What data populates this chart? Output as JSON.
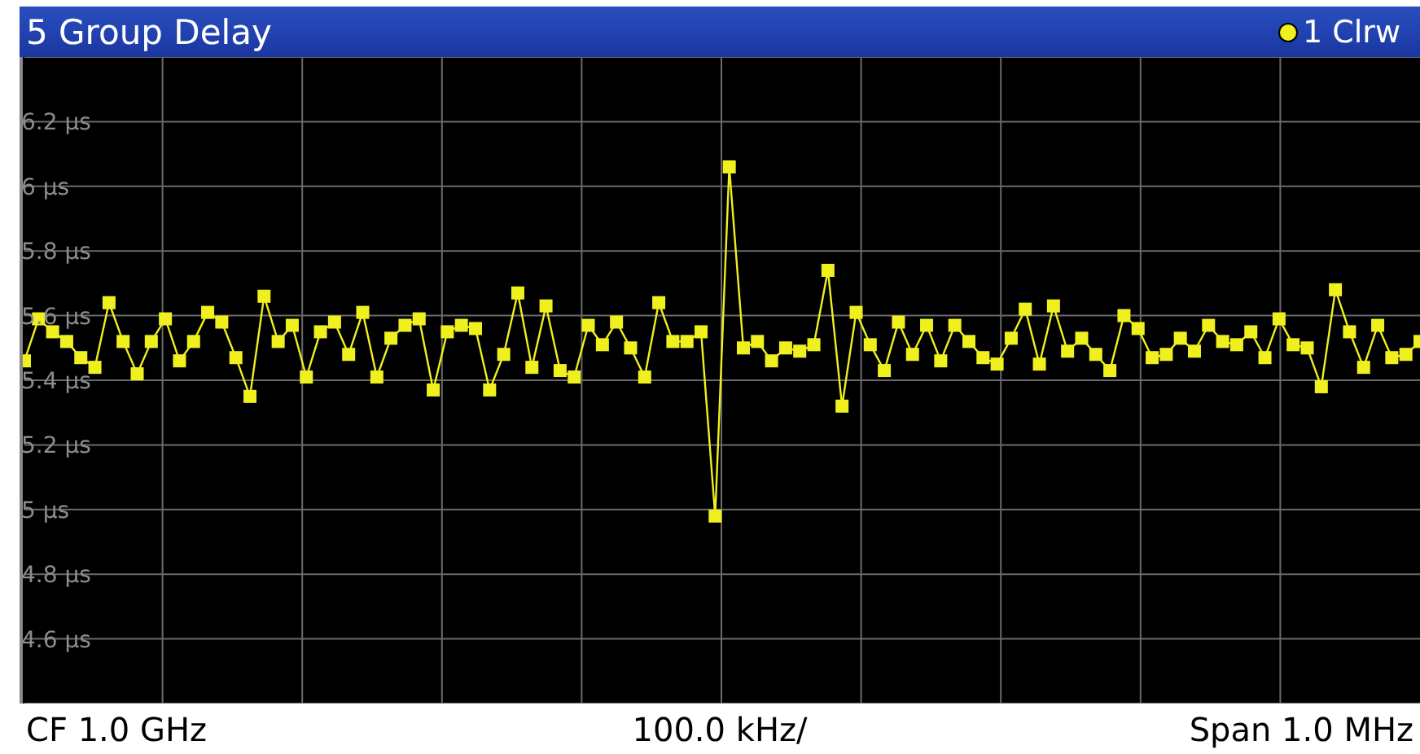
{
  "chart_data": {
    "type": "line",
    "title": "5 Group Delay",
    "categories": [
      null,
      null,
      null,
      null,
      null,
      null,
      null,
      null,
      null,
      null,
      null,
      null,
      null,
      null,
      null,
      null,
      null,
      null,
      null,
      null,
      null,
      null,
      null,
      null,
      null,
      null,
      null,
      null,
      null,
      null,
      null,
      null,
      null,
      null,
      null,
      null,
      null,
      null,
      null,
      null,
      null,
      null,
      null,
      null,
      null,
      null,
      null,
      null,
      null,
      null,
      null,
      null,
      null,
      null,
      null,
      null,
      null,
      null,
      null,
      null,
      null,
      null,
      null,
      null,
      null,
      null,
      null,
      null,
      null,
      null,
      null,
      null,
      null,
      null,
      null,
      null,
      null,
      null,
      null,
      null,
      null,
      null,
      null,
      null,
      null,
      null,
      null,
      null,
      null,
      null,
      null,
      null,
      null,
      null,
      null,
      null,
      null,
      null,
      null,
      null
    ],
    "series": [
      {
        "name": "1 Clrw",
        "color": "#f0f01e",
        "values": [
          5.46,
          5.59,
          5.55,
          5.52,
          5.47,
          5.44,
          5.64,
          5.52,
          5.42,
          5.52,
          5.59,
          5.46,
          5.52,
          5.61,
          5.58,
          5.47,
          5.35,
          5.66,
          5.52,
          5.57,
          5.41,
          5.55,
          5.58,
          5.48,
          5.61,
          5.41,
          5.53,
          5.57,
          5.59,
          5.37,
          5.55,
          5.57,
          5.56,
          5.37,
          5.48,
          5.67,
          5.44,
          5.63,
          5.43,
          5.41,
          5.57,
          5.51,
          5.58,
          5.5,
          5.41,
          5.64,
          5.52,
          5.52,
          5.55,
          4.98,
          6.06,
          5.5,
          5.52,
          5.46,
          5.5,
          5.49,
          5.51,
          5.74,
          5.32,
          5.61,
          5.51,
          5.43,
          5.58,
          5.48,
          5.57,
          5.46,
          5.57,
          5.52,
          5.47,
          5.45,
          5.53,
          5.62,
          5.45,
          5.63,
          5.49,
          5.53,
          5.48,
          5.43,
          5.6,
          5.56,
          5.47,
          5.48,
          5.53,
          5.49,
          5.57,
          5.52,
          5.51,
          5.55,
          5.47,
          5.59,
          5.51,
          5.5,
          5.38,
          5.68,
          5.55,
          5.44,
          5.57,
          5.47,
          5.48,
          5.52
        ]
      }
    ],
    "ylim": [
      4.4,
      6.4
    ],
    "yticks": [
      {
        "value": 4.6,
        "label": "4.6 µs"
      },
      {
        "value": 4.8,
        "label": "4.8 µs"
      },
      {
        "value": 5,
        "label": "5 µs"
      },
      {
        "value": 5.2,
        "label": "5.2 µs"
      },
      {
        "value": 5.4,
        "label": "5.4 µs"
      },
      {
        "value": 5.6,
        "label": "5.6 µs"
      },
      {
        "value": 5.8,
        "label": "5.8 µs"
      },
      {
        "value": 6,
        "label": "6 µs"
      },
      {
        "value": 6.2,
        "label": "6.2 µs"
      }
    ],
    "grid": true,
    "legend": "top right",
    "marker": "square",
    "line_style": "solid",
    "tick_labels": "y",
    "annotations": [
      "CF 1.0 GHz",
      "100.0 kHz/",
      "Span 1.0 MHz"
    ]
  }
}
